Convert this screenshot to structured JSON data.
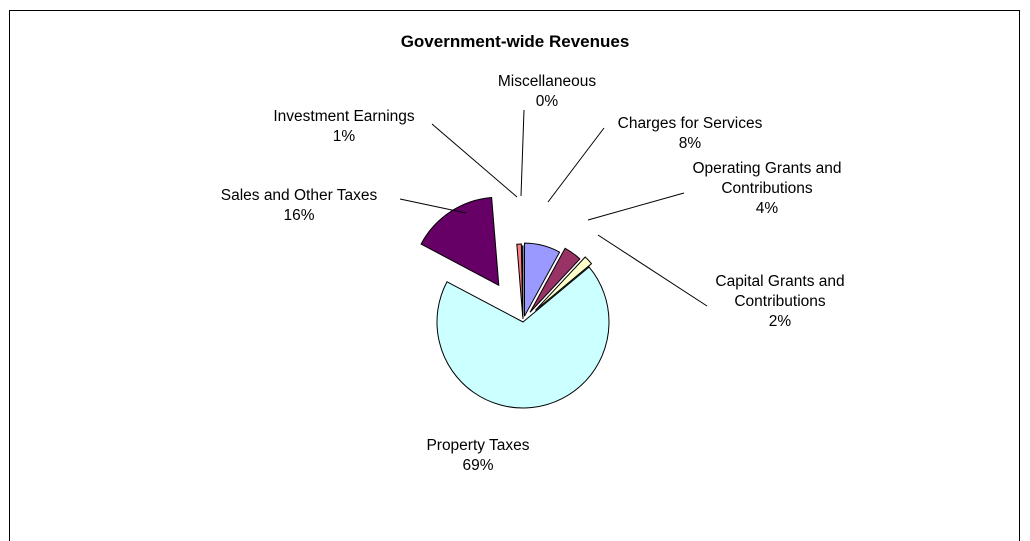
{
  "chart_data": {
    "type": "pie",
    "title": "Government-wide Revenues",
    "slices": [
      {
        "label": "Charges for Services",
        "pct_label": "8%",
        "value": 8,
        "color": "#9999ff"
      },
      {
        "label": "Operating Grants and Contributions",
        "pct_label": "4%",
        "value": 4,
        "color": "#993366"
      },
      {
        "label": "Capital Grants and Contributions",
        "pct_label": "2%",
        "value": 2,
        "color": "#ffffcc"
      },
      {
        "label": "Property Taxes",
        "pct_label": "69%",
        "value": 69,
        "color": "#ccffff"
      },
      {
        "label": "Sales and Other Taxes",
        "pct_label": "16%",
        "value": 16,
        "color": "#660066"
      },
      {
        "label": "Investment Earnings",
        "pct_label": "1%",
        "value": 1,
        "color": "#ff8080"
      },
      {
        "label": "Miscellaneous",
        "pct_label": "0%",
        "value": 0.3,
        "color": "#0066cc"
      }
    ],
    "legend": "none",
    "exploded": true
  }
}
